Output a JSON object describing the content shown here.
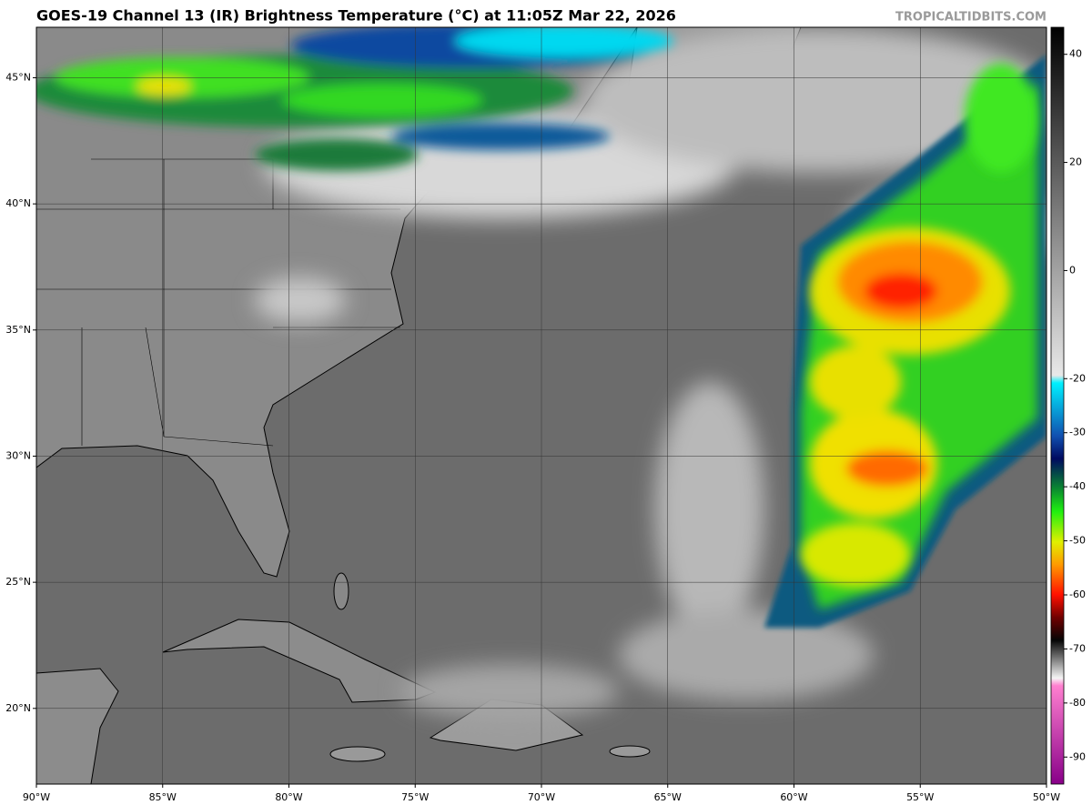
{
  "map": {
    "title": "GOES-19 Channel 13 (IR) Brightness Temperature (°C) at 11:05Z Mar 22, 2026",
    "source": "TROPICALTIDBITS.COM",
    "xlim": [
      -90,
      -50
    ],
    "ylim": [
      17,
      47
    ],
    "xticks": [
      {
        "value": -90,
        "label": "90°W"
      },
      {
        "value": -85,
        "label": "85°W"
      },
      {
        "value": -80,
        "label": "80°W"
      },
      {
        "value": -75,
        "label": "75°W"
      },
      {
        "value": -70,
        "label": "70°W"
      },
      {
        "value": -65,
        "label": "65°W"
      },
      {
        "value": -60,
        "label": "60°W"
      },
      {
        "value": -55,
        "label": "55°W"
      },
      {
        "value": -50,
        "label": "50°W"
      }
    ],
    "yticks": [
      {
        "value": 20,
        "label": "20°N"
      },
      {
        "value": 25,
        "label": "25°N"
      },
      {
        "value": 30,
        "label": "30°N"
      },
      {
        "value": 35,
        "label": "35°N"
      },
      {
        "value": 40,
        "label": "40°N"
      },
      {
        "value": 45,
        "label": "45°N"
      }
    ],
    "grid": true
  },
  "colorbar": {
    "lim": [
      -95,
      45
    ],
    "ticks": [
      40,
      20,
      0,
      -20,
      -30,
      -40,
      -50,
      -60,
      -70,
      -80,
      -90
    ]
  }
}
